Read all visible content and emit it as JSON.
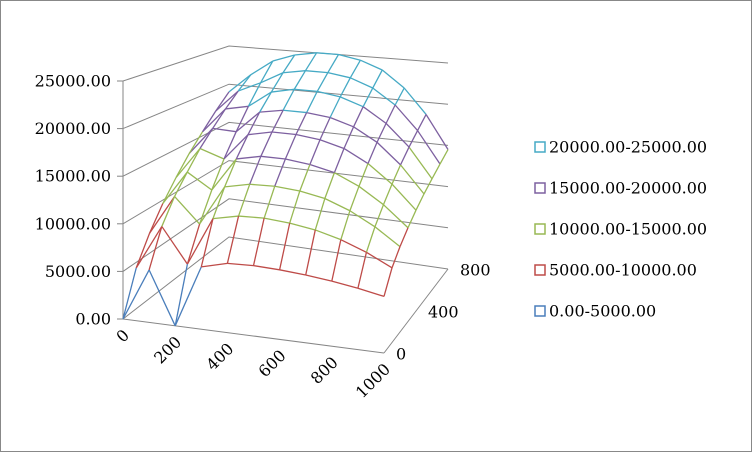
{
  "chart_data": {
    "type": "surface",
    "categories": [
      "0",
      null,
      "200",
      null,
      "400",
      null,
      "600",
      null,
      "800",
      null,
      "1000"
    ],
    "depth_categories": [
      "0",
      null,
      null,
      null,
      "400",
      null,
      null,
      null,
      "800"
    ],
    "values": [
      [
        0,
        5500,
        0,
        6500,
        7200,
        7300,
        7200,
        7000,
        6700,
        6300,
        5800
      ],
      [
        4400,
        9200,
        5500,
        10700,
        11300,
        11400,
        11200,
        10800,
        10100,
        9100,
        7800
      ],
      [
        7200,
        11600,
        8900,
        13300,
        13900,
        14000,
        13800,
        13300,
        12300,
        10900,
        9100
      ],
      [
        9600,
        13500,
        11800,
        15600,
        16200,
        16200,
        15900,
        15300,
        14100,
        12400,
        10200
      ],
      [
        11700,
        15400,
        14500,
        17600,
        18200,
        18200,
        17900,
        17200,
        15800,
        13800,
        11200
      ],
      [
        13700,
        17000,
        16900,
        19500,
        20000,
        20000,
        19700,
        18900,
        17400,
        15100,
        12100
      ],
      [
        15500,
        18600,
        19200,
        21200,
        21800,
        21800,
        21400,
        20500,
        18800,
        16300,
        12900
      ],
      [
        17300,
        20100,
        21400,
        22900,
        23400,
        23400,
        23000,
        22000,
        20200,
        17400,
        13700
      ],
      [
        19000,
        21500,
        23500,
        24500,
        25000,
        25000,
        24500,
        23500,
        21500,
        18500,
        14500
      ]
    ],
    "zlim": [
      0,
      25000
    ],
    "zticks": [
      {
        "value": 0,
        "label": "0.00"
      },
      {
        "value": 5000,
        "label": "5000.00"
      },
      {
        "value": 10000,
        "label": "10000.00"
      },
      {
        "value": 15000,
        "label": "15000.00"
      },
      {
        "value": 20000,
        "label": "20000.00"
      },
      {
        "value": 25000,
        "label": "25000.00"
      }
    ],
    "grid": true,
    "legend": "right",
    "series": [
      {
        "name": "20000.00-25000.00",
        "color": "#46aac5"
      },
      {
        "name": "15000.00-20000.00",
        "color": "#7d60a0"
      },
      {
        "name": "10000.00-15000.00",
        "color": "#98b954"
      },
      {
        "name": "5000.00-10000.00",
        "color": "#be4b48"
      },
      {
        "name": "0.00-5000.00",
        "color": "#4a7ebb"
      }
    ]
  }
}
